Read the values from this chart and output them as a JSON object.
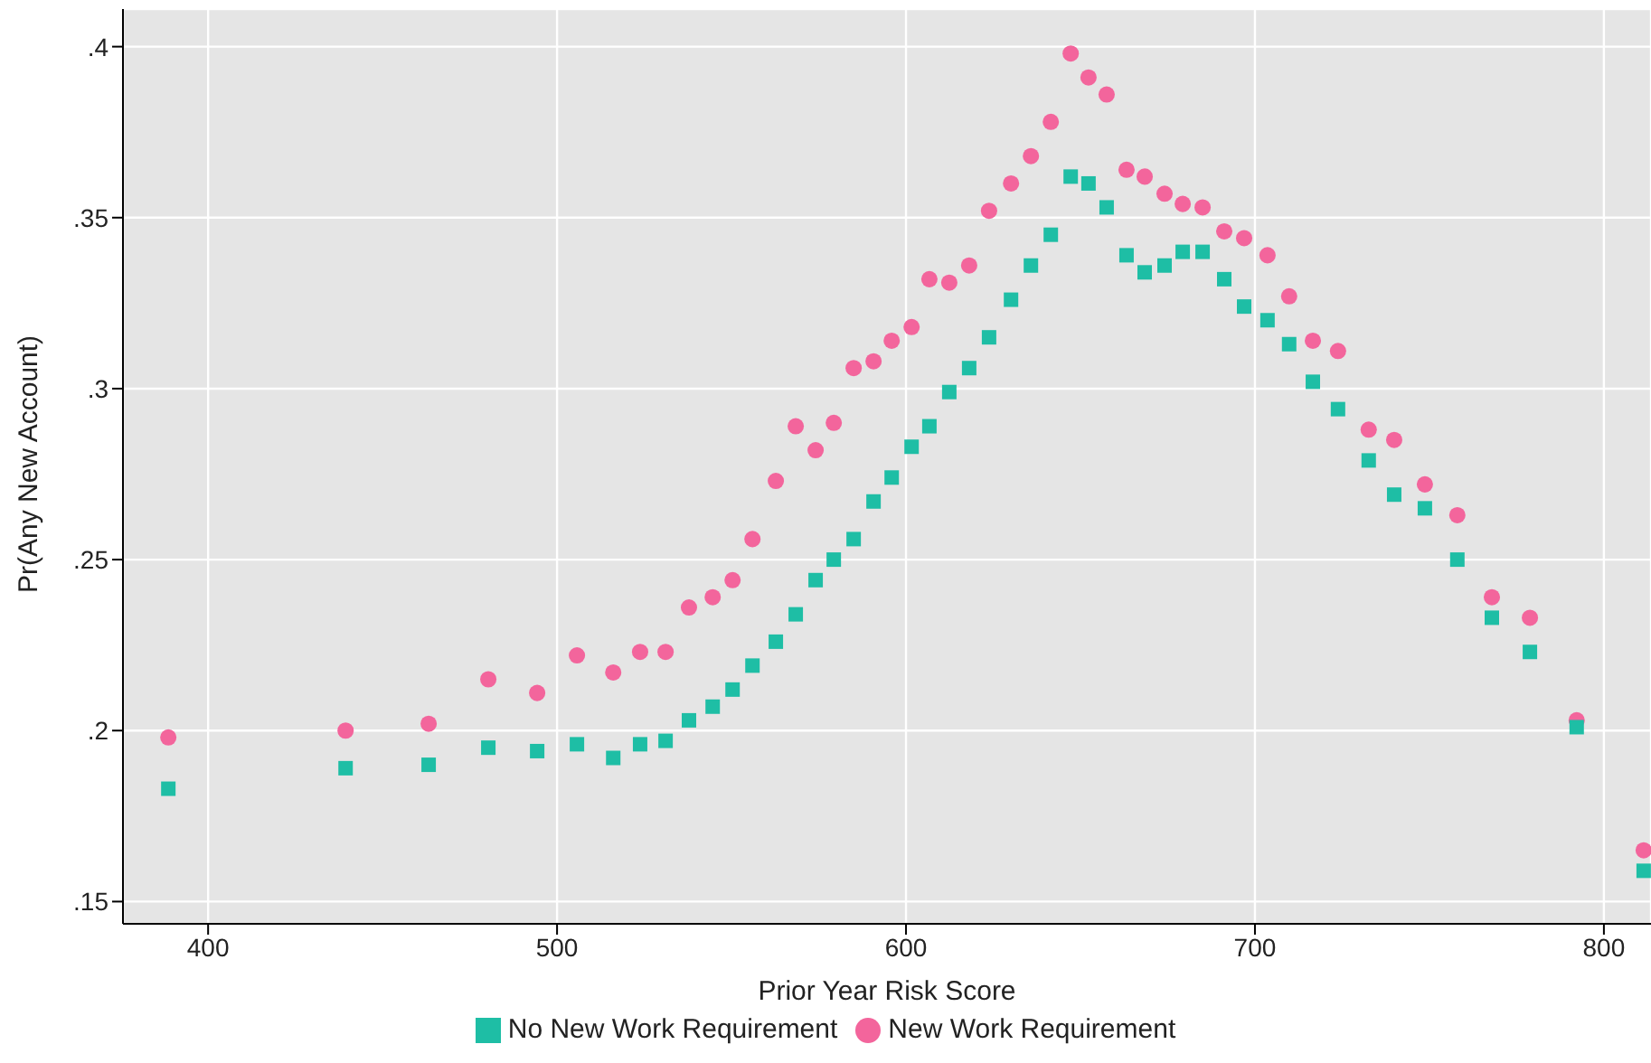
{
  "chart_data": {
    "type": "scatter",
    "xlabel": "Prior Year Risk Score",
    "ylabel": "Pr(Any New Account)",
    "x": [
      388.6,
      439.4,
      463.2,
      480.3,
      494.3,
      505.7,
      516.1,
      523.8,
      531.1,
      537.8,
      544.6,
      550.3,
      556.0,
      562.7,
      568.4,
      574.1,
      579.3,
      585.0,
      590.7,
      595.9,
      601.6,
      606.7,
      612.4,
      618.1,
      623.8,
      630.1,
      635.8,
      641.5,
      647.2,
      652.3,
      657.5,
      663.2,
      668.4,
      674.1,
      679.3,
      685.0,
      691.2,
      696.9,
      703.6,
      709.8,
      716.6,
      723.8,
      732.6,
      739.9,
      748.7,
      758.0,
      767.9,
      778.8,
      792.2,
      811.4
    ],
    "series": [
      {
        "name": "No New Work Requirement",
        "color": "#1ebea5",
        "marker": "square",
        "values": [
          0.183,
          0.189,
          0.19,
          0.195,
          0.194,
          0.196,
          0.192,
          0.196,
          0.197,
          0.203,
          0.207,
          0.212,
          0.219,
          0.226,
          0.234,
          0.244,
          0.25,
          0.256,
          0.267,
          0.274,
          0.283,
          0.289,
          0.299,
          0.306,
          0.315,
          0.326,
          0.336,
          0.345,
          0.362,
          0.36,
          0.353,
          0.339,
          0.334,
          0.336,
          0.34,
          0.34,
          0.332,
          0.324,
          0.32,
          0.313,
          0.302,
          0.294,
          0.279,
          0.269,
          0.265,
          0.25,
          0.233,
          0.223,
          0.201,
          0.159
        ]
      },
      {
        "name": "New Work Requirement",
        "color": "#f3659c",
        "marker": "circle",
        "values": [
          0.198,
          0.2,
          0.202,
          0.215,
          0.211,
          0.222,
          0.217,
          0.223,
          0.223,
          0.236,
          0.239,
          0.244,
          0.256,
          0.273,
          0.289,
          0.282,
          0.29,
          0.306,
          0.308,
          0.314,
          0.318,
          0.332,
          0.331,
          0.336,
          0.352,
          0.36,
          0.368,
          0.378,
          0.398,
          0.391,
          0.386,
          0.364,
          0.362,
          0.357,
          0.354,
          0.353,
          0.346,
          0.344,
          0.339,
          0.327,
          0.314,
          0.311,
          0.288,
          0.285,
          0.272,
          0.263,
          0.239,
          0.233,
          0.203,
          0.165
        ]
      }
    ],
    "xlim": [
      375.6,
      813.5
    ],
    "xticks": [
      400,
      500,
      600,
      700,
      800
    ],
    "ylim": [
      0.1435,
      0.411
    ],
    "yticks": [
      {
        "value": 0.15,
        "label": ".15"
      },
      {
        "value": 0.2,
        "label": ".2"
      },
      {
        "value": 0.25,
        "label": ".25"
      },
      {
        "value": 0.3,
        "label": ".3"
      },
      {
        "value": 0.35,
        "label": ".35"
      },
      {
        "value": 0.4,
        "label": ".4"
      }
    ],
    "grid": true,
    "legend": "bottom"
  }
}
